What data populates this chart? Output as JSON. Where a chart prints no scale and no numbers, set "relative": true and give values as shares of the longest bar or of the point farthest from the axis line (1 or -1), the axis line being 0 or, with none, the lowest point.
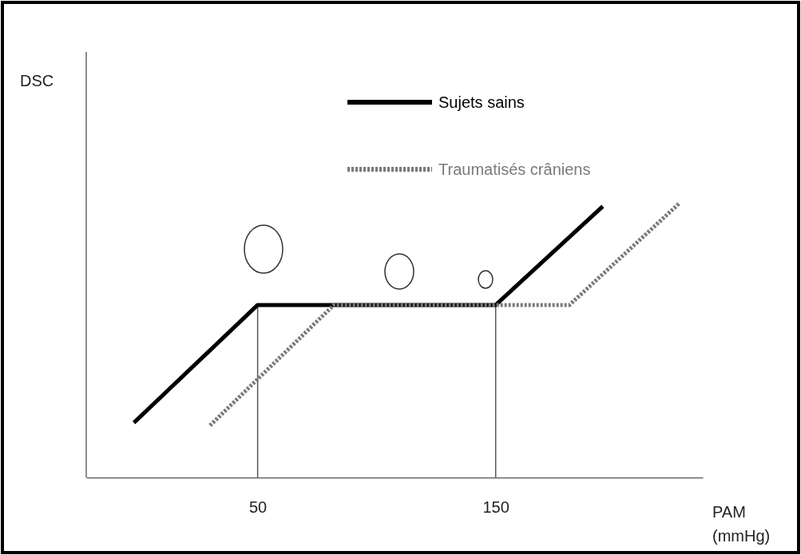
{
  "chart_data": {
    "type": "line",
    "relative": true,
    "xlabel": "PAM (mmHg)",
    "annotations": [
      "DSC"
    ],
    "xlim": [
      -22,
      237
    ],
    "xticks": [
      50,
      150
    ],
    "grid": false,
    "legend": "top",
    "marker": "none",
    "series": [
      {
        "name": "Sujets sains",
        "color": "#000000",
        "line_style": "solid",
        "x": [
          -2,
          50,
          150,
          195
        ],
        "values": [
          0.2,
          0.63,
          0.63,
          0.99
        ]
      },
      {
        "name": "Traumatisés crâniens",
        "color": "#7a7a7a",
        "line_style": "dotted",
        "x": [
          30,
          82,
          181,
          227
        ],
        "values": [
          0.19,
          0.63,
          0.63,
          1
        ]
      },
      {
        "color": "#555555",
        "line_style": "solid",
        "x": [
          50,
          50
        ],
        "values": [
          0,
          0.63
        ]
      },
      {
        "color": "#555555",
        "line_style": "solid",
        "x": [
          150,
          150
        ],
        "values": [
          0,
          0.63
        ]
      }
    ]
  }
}
